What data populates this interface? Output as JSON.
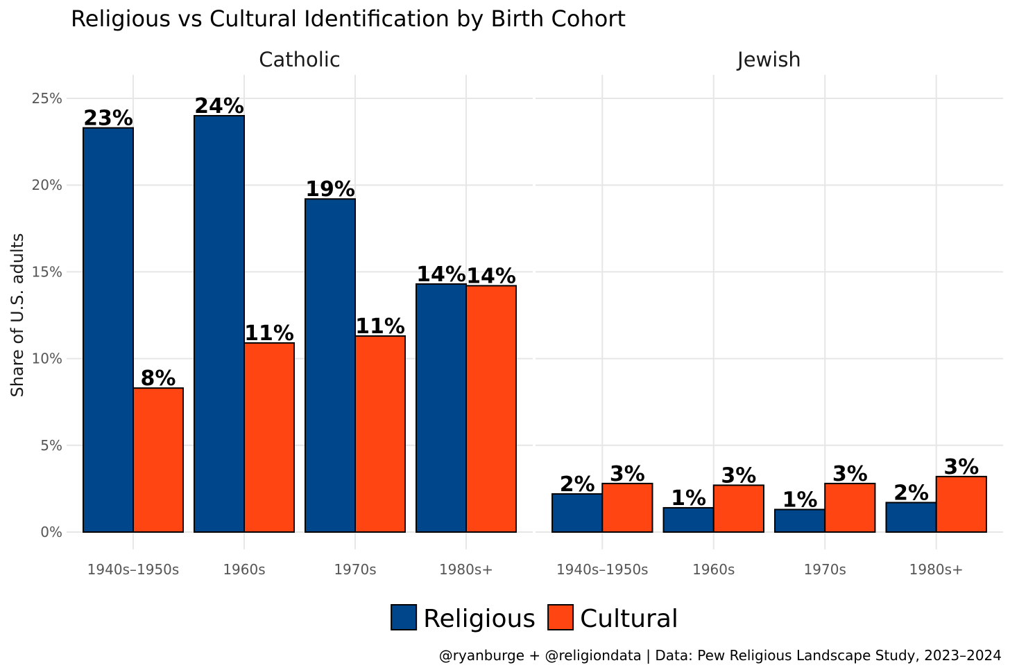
{
  "chart_data": {
    "type": "bar",
    "title": "Religious vs Cultural Identification by Birth Cohort",
    "ylabel": "Share of U.S. adults",
    "xlabel": "",
    "ylim": [
      0,
      25
    ],
    "y_ticks": [
      "0%",
      "5%",
      "10%",
      "15%",
      "20%",
      "25%"
    ],
    "y_tick_values": [
      0,
      5,
      10,
      15,
      20,
      25
    ],
    "categories": [
      "1940s–1950s",
      "1960s",
      "1970s",
      "1980s+"
    ],
    "legend": {
      "position": "bottom",
      "entries": [
        "Religious",
        "Cultural"
      ]
    },
    "colors": {
      "Religious": "#00468b",
      "Cultural": "#ff4612"
    },
    "grid": true,
    "facets": [
      {
        "name": "Catholic",
        "series": [
          {
            "name": "Religious",
            "values": [
              23.3,
              24.0,
              19.2,
              14.3
            ],
            "labels": [
              "23%",
              "24%",
              "19%",
              "14%"
            ]
          },
          {
            "name": "Cultural",
            "values": [
              8.3,
              10.9,
              11.3,
              14.2
            ],
            "labels": [
              "8%",
              "11%",
              "11%",
              "14%"
            ]
          }
        ]
      },
      {
        "name": "Jewish",
        "series": [
          {
            "name": "Religious",
            "values": [
              2.2,
              1.4,
              1.3,
              1.7
            ],
            "labels": [
              "2%",
              "1%",
              "1%",
              "2%"
            ]
          },
          {
            "name": "Cultural",
            "values": [
              2.8,
              2.7,
              2.8,
              3.2
            ],
            "labels": [
              "3%",
              "3%",
              "3%",
              "3%"
            ]
          }
        ]
      }
    ],
    "caption": "@ryanburge + @religiondata | Data: Pew Religious Landscape Study, 2023–2024"
  }
}
